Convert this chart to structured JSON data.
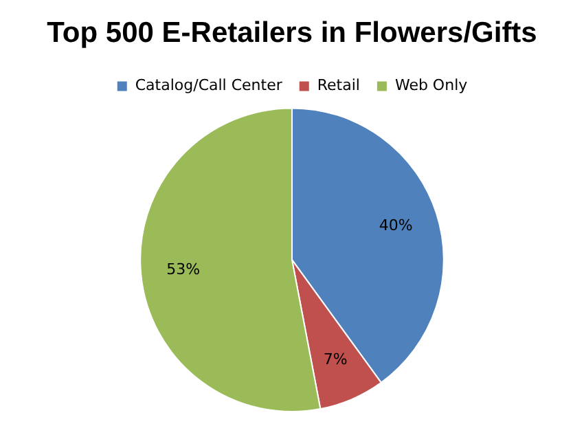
{
  "chart_data": {
    "type": "pie",
    "title": "Top 500 E-Retailers in Flowers/Gifts",
    "categories": [
      "Catalog/Call Center",
      "Retail",
      "Web Only"
    ],
    "values": [
      40,
      7,
      53
    ],
    "colors": [
      "#4f81bd",
      "#c0504d",
      "#9bbb59"
    ],
    "value_labels": [
      "40%",
      "7%",
      "53%"
    ],
    "legend": "top"
  }
}
